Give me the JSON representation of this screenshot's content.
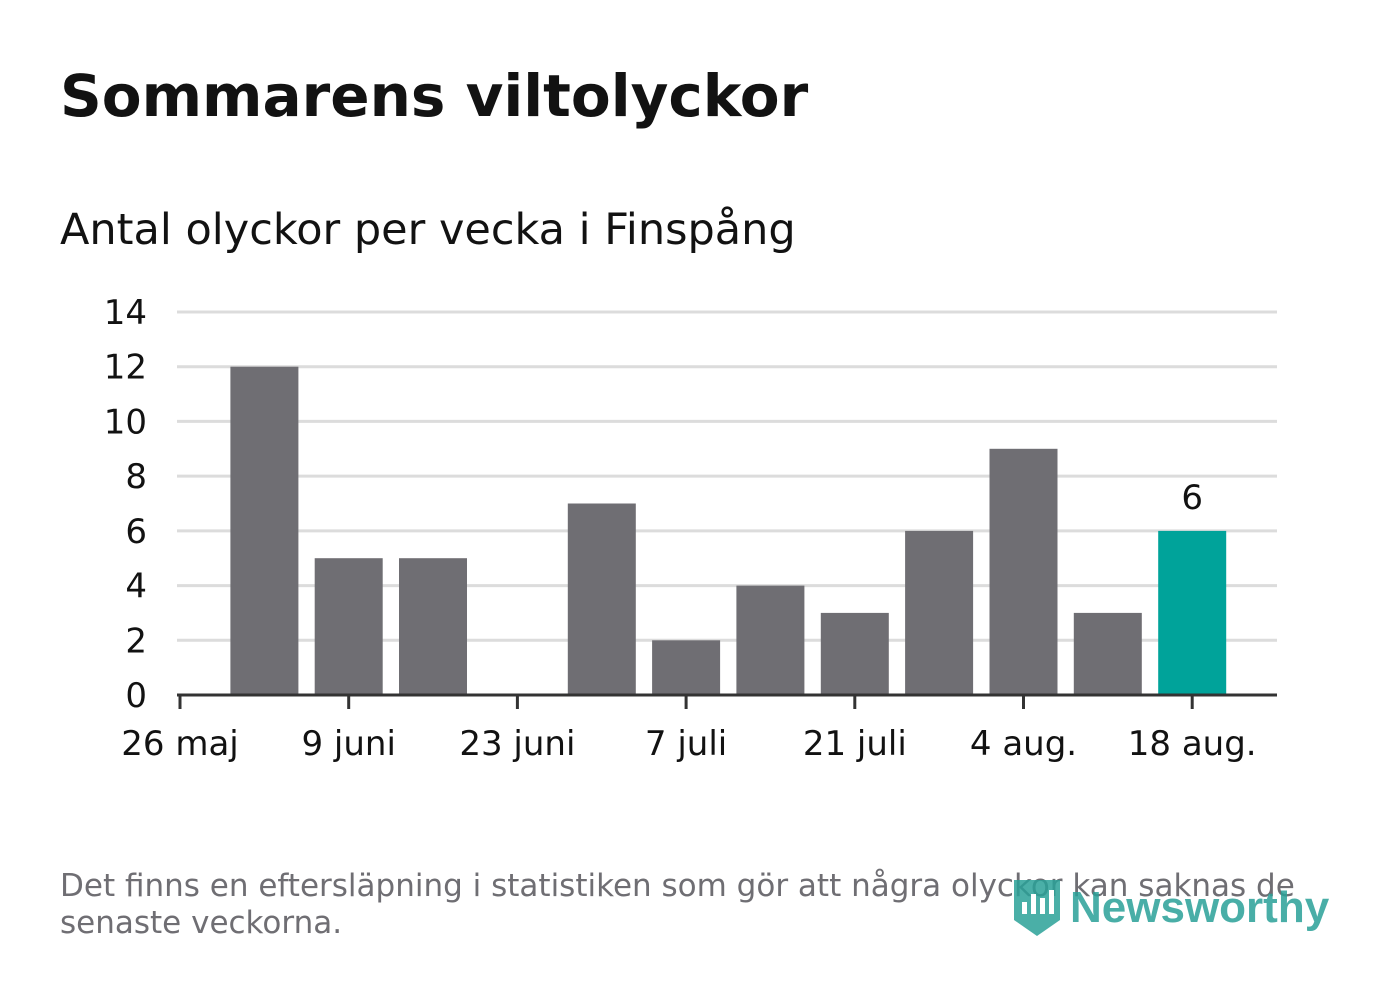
{
  "title": "Sommarens viltolyckor",
  "subtitle": "Antal olyckor per vecka i Finspång",
  "footnote": "Det finns en eftersläpning i statistiken som gör att några olyckor kan saknas de senaste veckorna.",
  "brand": {
    "name": "Newsworthy",
    "icon": "newsworthy-logo-icon"
  },
  "colors": {
    "bar": "#6f6e73",
    "highlight": "#00a39a",
    "grid": "#dcdcdc",
    "axis": "#333333",
    "text": "#121212"
  },
  "chart_data": {
    "type": "bar",
    "title": "Sommarens viltolyckor",
    "subtitle": "Antal olyckor per vecka i Finspång",
    "xlabel": "",
    "ylabel": "",
    "ylim": [
      0,
      14
    ],
    "yticks": [
      0,
      2,
      4,
      6,
      8,
      10,
      12,
      14
    ],
    "xtick_labels": [
      "26 maj",
      "9 juni",
      "23 juni",
      "7 juli",
      "21 juli",
      "4 aug.",
      "18 aug."
    ],
    "grid": true,
    "legend": "none",
    "values": [
      12,
      5,
      5,
      0,
      7,
      2,
      4,
      3,
      6,
      9,
      3,
      6
    ],
    "highlight_index": 11,
    "data_labels": [
      {
        "index": 11,
        "text": "6"
      }
    ]
  }
}
